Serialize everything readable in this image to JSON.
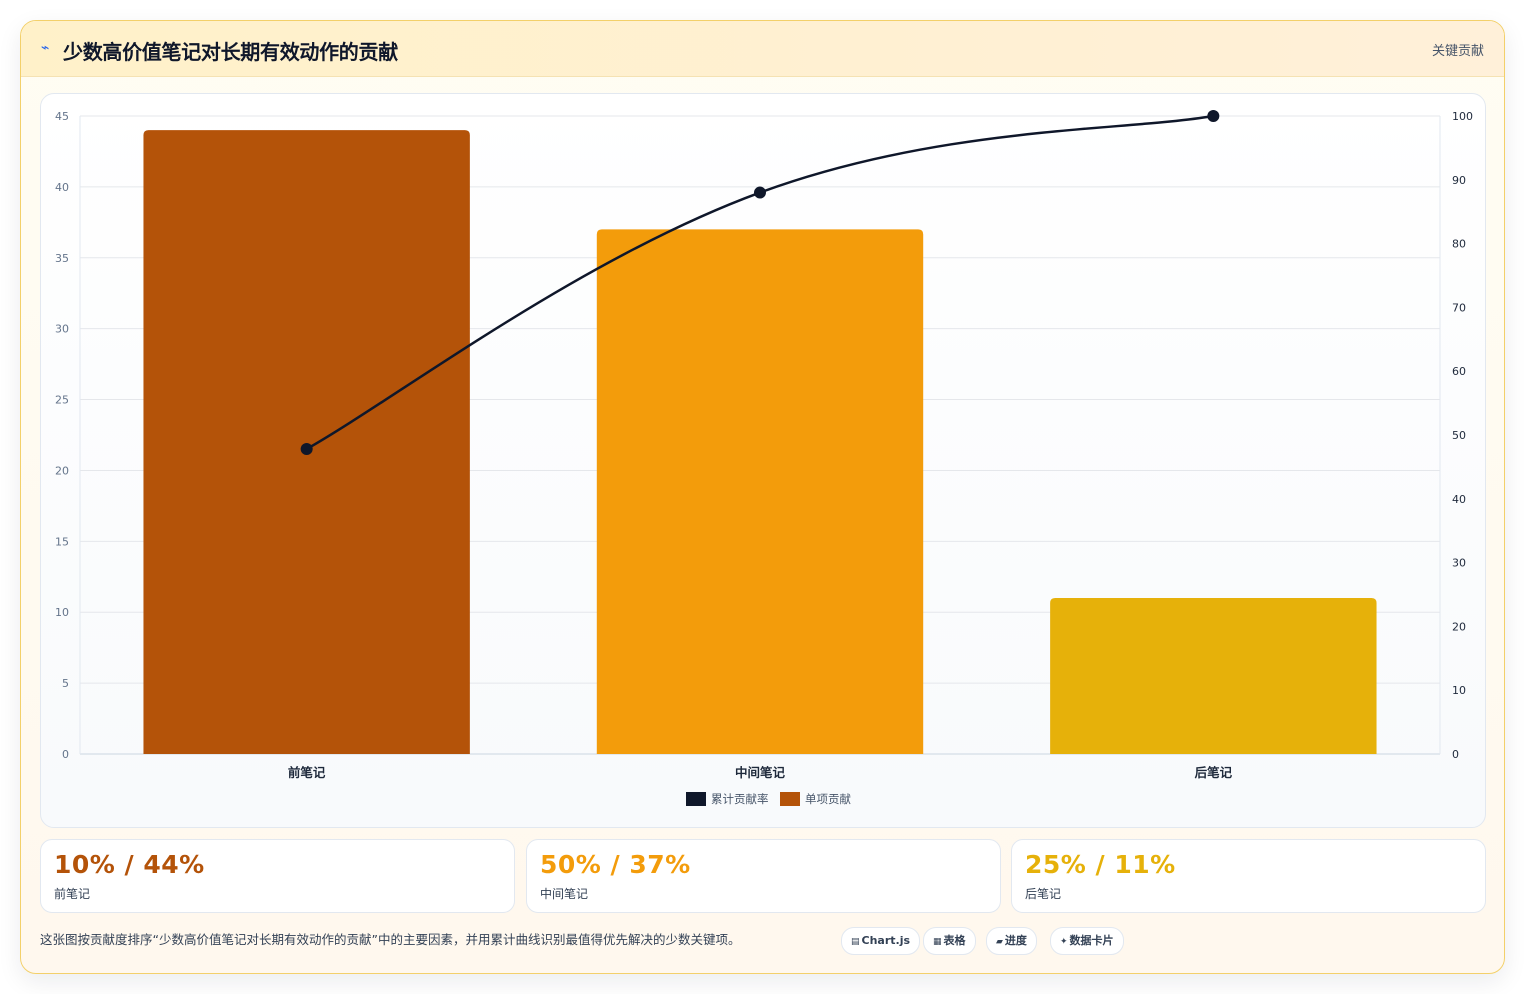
{
  "header": {
    "title": "少数高价值笔记对长期有效动作的贡献",
    "bolt_icon": "⌁",
    "tag": "关键贡献"
  },
  "chart_data": {
    "type": "bar",
    "categories": [
      "前笔记",
      "中间笔记",
      "后笔记"
    ],
    "series": [
      {
        "name": "单项贡献",
        "kind": "bar",
        "axis": "left",
        "values": [
          44,
          37,
          11
        ],
        "colors": [
          "#b45309",
          "#f39c0b",
          "#e6b10a"
        ]
      },
      {
        "name": "累计贡献率",
        "kind": "line",
        "axis": "right",
        "values": [
          47.8,
          88,
          100
        ],
        "color": "#0f172a"
      }
    ],
    "y_left": {
      "min": 0,
      "max": 45,
      "ticks": [
        0,
        5,
        10,
        15,
        20,
        25,
        30,
        35,
        40,
        45
      ]
    },
    "y_right": {
      "min": 0,
      "max": 100,
      "ticks": [
        0,
        10,
        20,
        30,
        40,
        50,
        60,
        70,
        80,
        90,
        100
      ]
    },
    "legend": [
      {
        "label": "累计贡献率",
        "color": "#0f172a"
      },
      {
        "label": "单项贡献",
        "color": "#b45309"
      }
    ],
    "legend_position": "bottom",
    "grid": true
  },
  "stats": [
    {
      "value": "10% / 44%",
      "label": "前笔记",
      "color": "#b45309"
    },
    {
      "value": "50% / 37%",
      "label": "中间笔记",
      "color": "#f39c0b"
    },
    {
      "value": "25% / 11%",
      "label": "后笔记",
      "color": "#e6b10a"
    }
  ],
  "caption": "这张图按贡献度排序“少数高价值笔记对长期有效动作的贡献”中的主要因素，并用累计曲线识别最值得优先解决的少数关键项。",
  "pills": [
    {
      "icon": "▤",
      "icon_name": "chart-icon",
      "label": "Chart.js"
    },
    {
      "icon": "▦",
      "icon_name": "table-icon",
      "label": "表格"
    },
    {
      "icon": "▰",
      "icon_name": "progress-icon",
      "label": "进度"
    },
    {
      "icon": "✦",
      "icon_name": "sparkle-icon",
      "label": "数据卡片"
    }
  ]
}
